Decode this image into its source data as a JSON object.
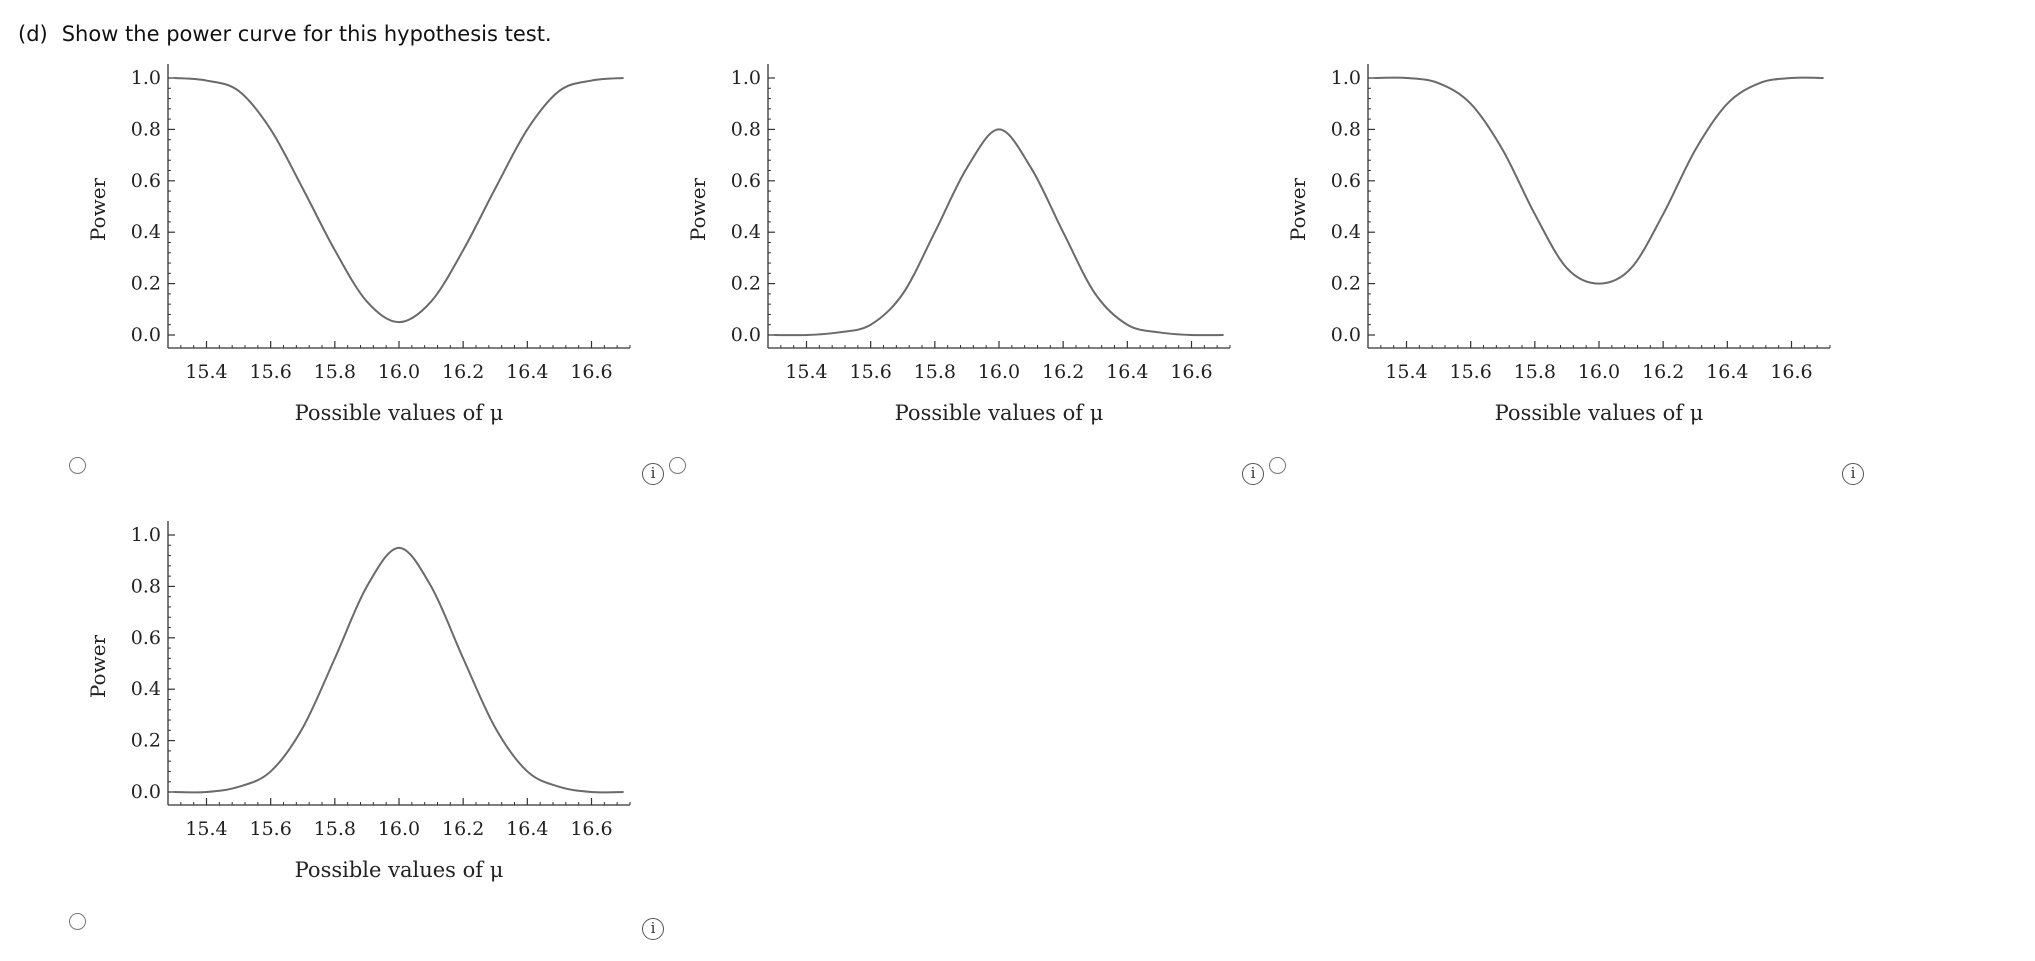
{
  "question": {
    "part": "(d)",
    "text": "Show the power curve for this hypothesis test."
  },
  "info_icon": "info-icon",
  "chart_data": [
    {
      "type": "line",
      "ylabel": "Power",
      "xlabel": "Possible values of μ",
      "xticks": [
        "15.4",
        "15.6",
        "15.8",
        "16.0",
        "16.2",
        "16.4",
        "16.6"
      ],
      "yticks": [
        "0.0",
        "0.2",
        "0.4",
        "0.6",
        "0.8",
        "1.0"
      ],
      "xlim": [
        15.28,
        16.72
      ],
      "ylim": [
        0,
        1.0
      ],
      "series": [
        {
          "x": [
            15.3,
            15.4,
            15.5,
            15.6,
            15.7,
            15.8,
            15.9,
            16.0,
            16.1,
            16.2,
            16.3,
            16.4,
            16.5,
            16.6,
            16.7
          ],
          "values": [
            1.0,
            0.99,
            0.95,
            0.8,
            0.57,
            0.33,
            0.13,
            0.05,
            0.13,
            0.33,
            0.57,
            0.8,
            0.95,
            0.99,
            1.0
          ]
        }
      ]
    },
    {
      "type": "line",
      "ylabel": "Power",
      "xlabel": "Possible values of μ",
      "xticks": [
        "15.4",
        "15.6",
        "15.8",
        "16.0",
        "16.2",
        "16.4",
        "16.6"
      ],
      "yticks": [
        "0.0",
        "0.2",
        "0.4",
        "0.6",
        "0.8",
        "1.0"
      ],
      "xlim": [
        15.28,
        16.72
      ],
      "ylim": [
        0,
        1.0
      ],
      "series": [
        {
          "x": [
            15.3,
            15.4,
            15.5,
            15.6,
            15.7,
            15.8,
            15.9,
            16.0,
            16.1,
            16.2,
            16.3,
            16.4,
            16.5,
            16.6,
            16.7
          ],
          "values": [
            0.0,
            0.0,
            0.01,
            0.04,
            0.16,
            0.4,
            0.65,
            0.8,
            0.65,
            0.4,
            0.16,
            0.04,
            0.01,
            0.0,
            0.0
          ]
        }
      ]
    },
    {
      "type": "line",
      "ylabel": "Power",
      "xlabel": "Possible values of μ",
      "xticks": [
        "15.4",
        "15.6",
        "15.8",
        "16.0",
        "16.2",
        "16.4",
        "16.6"
      ],
      "yticks": [
        "0.0",
        "0.2",
        "0.4",
        "0.6",
        "0.8",
        "1.0"
      ],
      "xlim": [
        15.28,
        16.72
      ],
      "ylim": [
        0,
        1.0
      ],
      "series": [
        {
          "x": [
            15.3,
            15.4,
            15.5,
            15.6,
            15.7,
            15.8,
            15.9,
            16.0,
            16.1,
            16.2,
            16.3,
            16.4,
            16.5,
            16.6,
            16.7
          ],
          "values": [
            1.0,
            1.0,
            0.98,
            0.9,
            0.72,
            0.47,
            0.26,
            0.2,
            0.26,
            0.47,
            0.72,
            0.9,
            0.98,
            1.0,
            1.0
          ]
        }
      ]
    },
    {
      "type": "line",
      "ylabel": "Power",
      "xlabel": "Possible values of μ",
      "xticks": [
        "15.4",
        "15.6",
        "15.8",
        "16.0",
        "16.2",
        "16.4",
        "16.6"
      ],
      "yticks": [
        "0.0",
        "0.2",
        "0.4",
        "0.6",
        "0.8",
        "1.0"
      ],
      "xlim": [
        15.28,
        16.72
      ],
      "ylim": [
        0,
        1.0
      ],
      "series": [
        {
          "x": [
            15.3,
            15.4,
            15.5,
            15.6,
            15.7,
            15.8,
            15.9,
            16.0,
            16.1,
            16.2,
            16.3,
            16.4,
            16.5,
            16.6,
            16.7
          ],
          "values": [
            0.0,
            0.0,
            0.02,
            0.08,
            0.25,
            0.52,
            0.8,
            0.95,
            0.8,
            0.52,
            0.25,
            0.08,
            0.02,
            0.0,
            0.0
          ]
        }
      ]
    }
  ]
}
